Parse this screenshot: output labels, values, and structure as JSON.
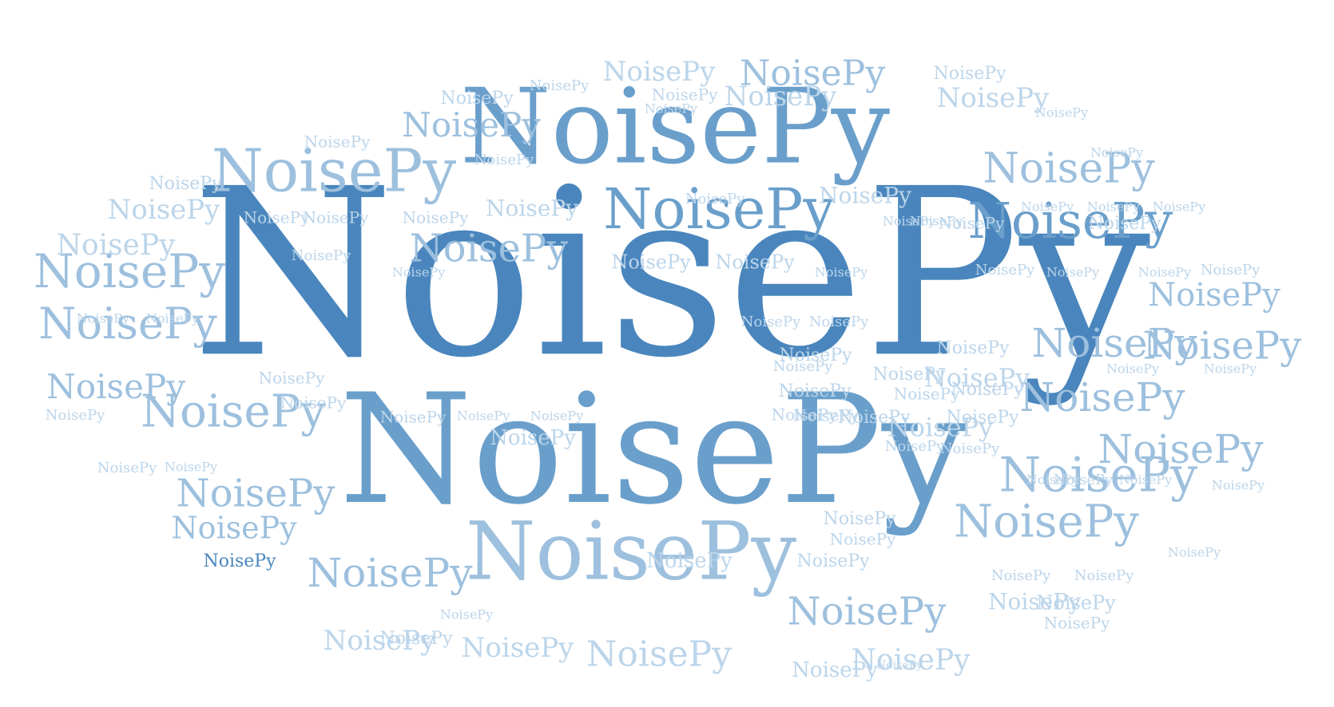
{
  "word": "NoisePy",
  "colors": {
    "background": "#ffffff",
    "dark": "#4a86bd",
    "mid": "#6a9fcb",
    "light": "#9dc0de",
    "pale": "#bcd5ea"
  },
  "cloud": {
    "word_count": 116
  }
}
